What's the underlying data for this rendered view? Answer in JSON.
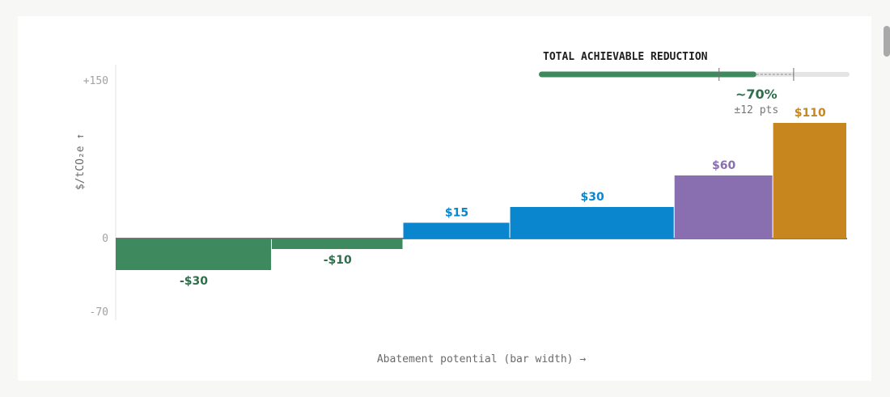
{
  "chart_data": {
    "type": "bar",
    "subtype": "marginal-abatement-cost-curve",
    "ylabel": "$/tCO₂e ↑",
    "xlabel": "Abatement potential (bar width) →",
    "ylim": [
      -70,
      150
    ],
    "yticks": [
      {
        "value": 150,
        "label": "+150"
      },
      {
        "value": 0,
        "label": "0"
      },
      {
        "value": -70,
        "label": "-70"
      }
    ],
    "bars": [
      {
        "value": -30,
        "width": 19,
        "label": "-$30",
        "color": "#3e8a5e",
        "label_color": "#2f6e4a"
      },
      {
        "value": -10,
        "width": 16,
        "label": "-$10",
        "color": "#3e8a5e",
        "label_color": "#2f6e4a"
      },
      {
        "value": 15,
        "width": 13,
        "label": "$15",
        "color": "#0a86cf",
        "label_color": "#0a86cf"
      },
      {
        "value": 30,
        "width": 20,
        "label": "$30",
        "color": "#0a86cf",
        "label_color": "#0a86cf"
      },
      {
        "value": 60,
        "width": 12,
        "label": "$60",
        "color": "#8a6fb0",
        "label_color": "#8a6fb0"
      },
      {
        "value": 110,
        "width": 9,
        "label": "$110",
        "color": "#c8861f",
        "label_color": "#c8861f"
      }
    ],
    "grid": false
  },
  "total_reduction": {
    "title": "TOTAL ACHIEVABLE REDUCTION",
    "value_label": "~70%",
    "uncertainty_label": "±12 pts",
    "fraction": 0.7,
    "low": 0.58,
    "high": 0.82,
    "bar_color": "#3e8a5e"
  }
}
